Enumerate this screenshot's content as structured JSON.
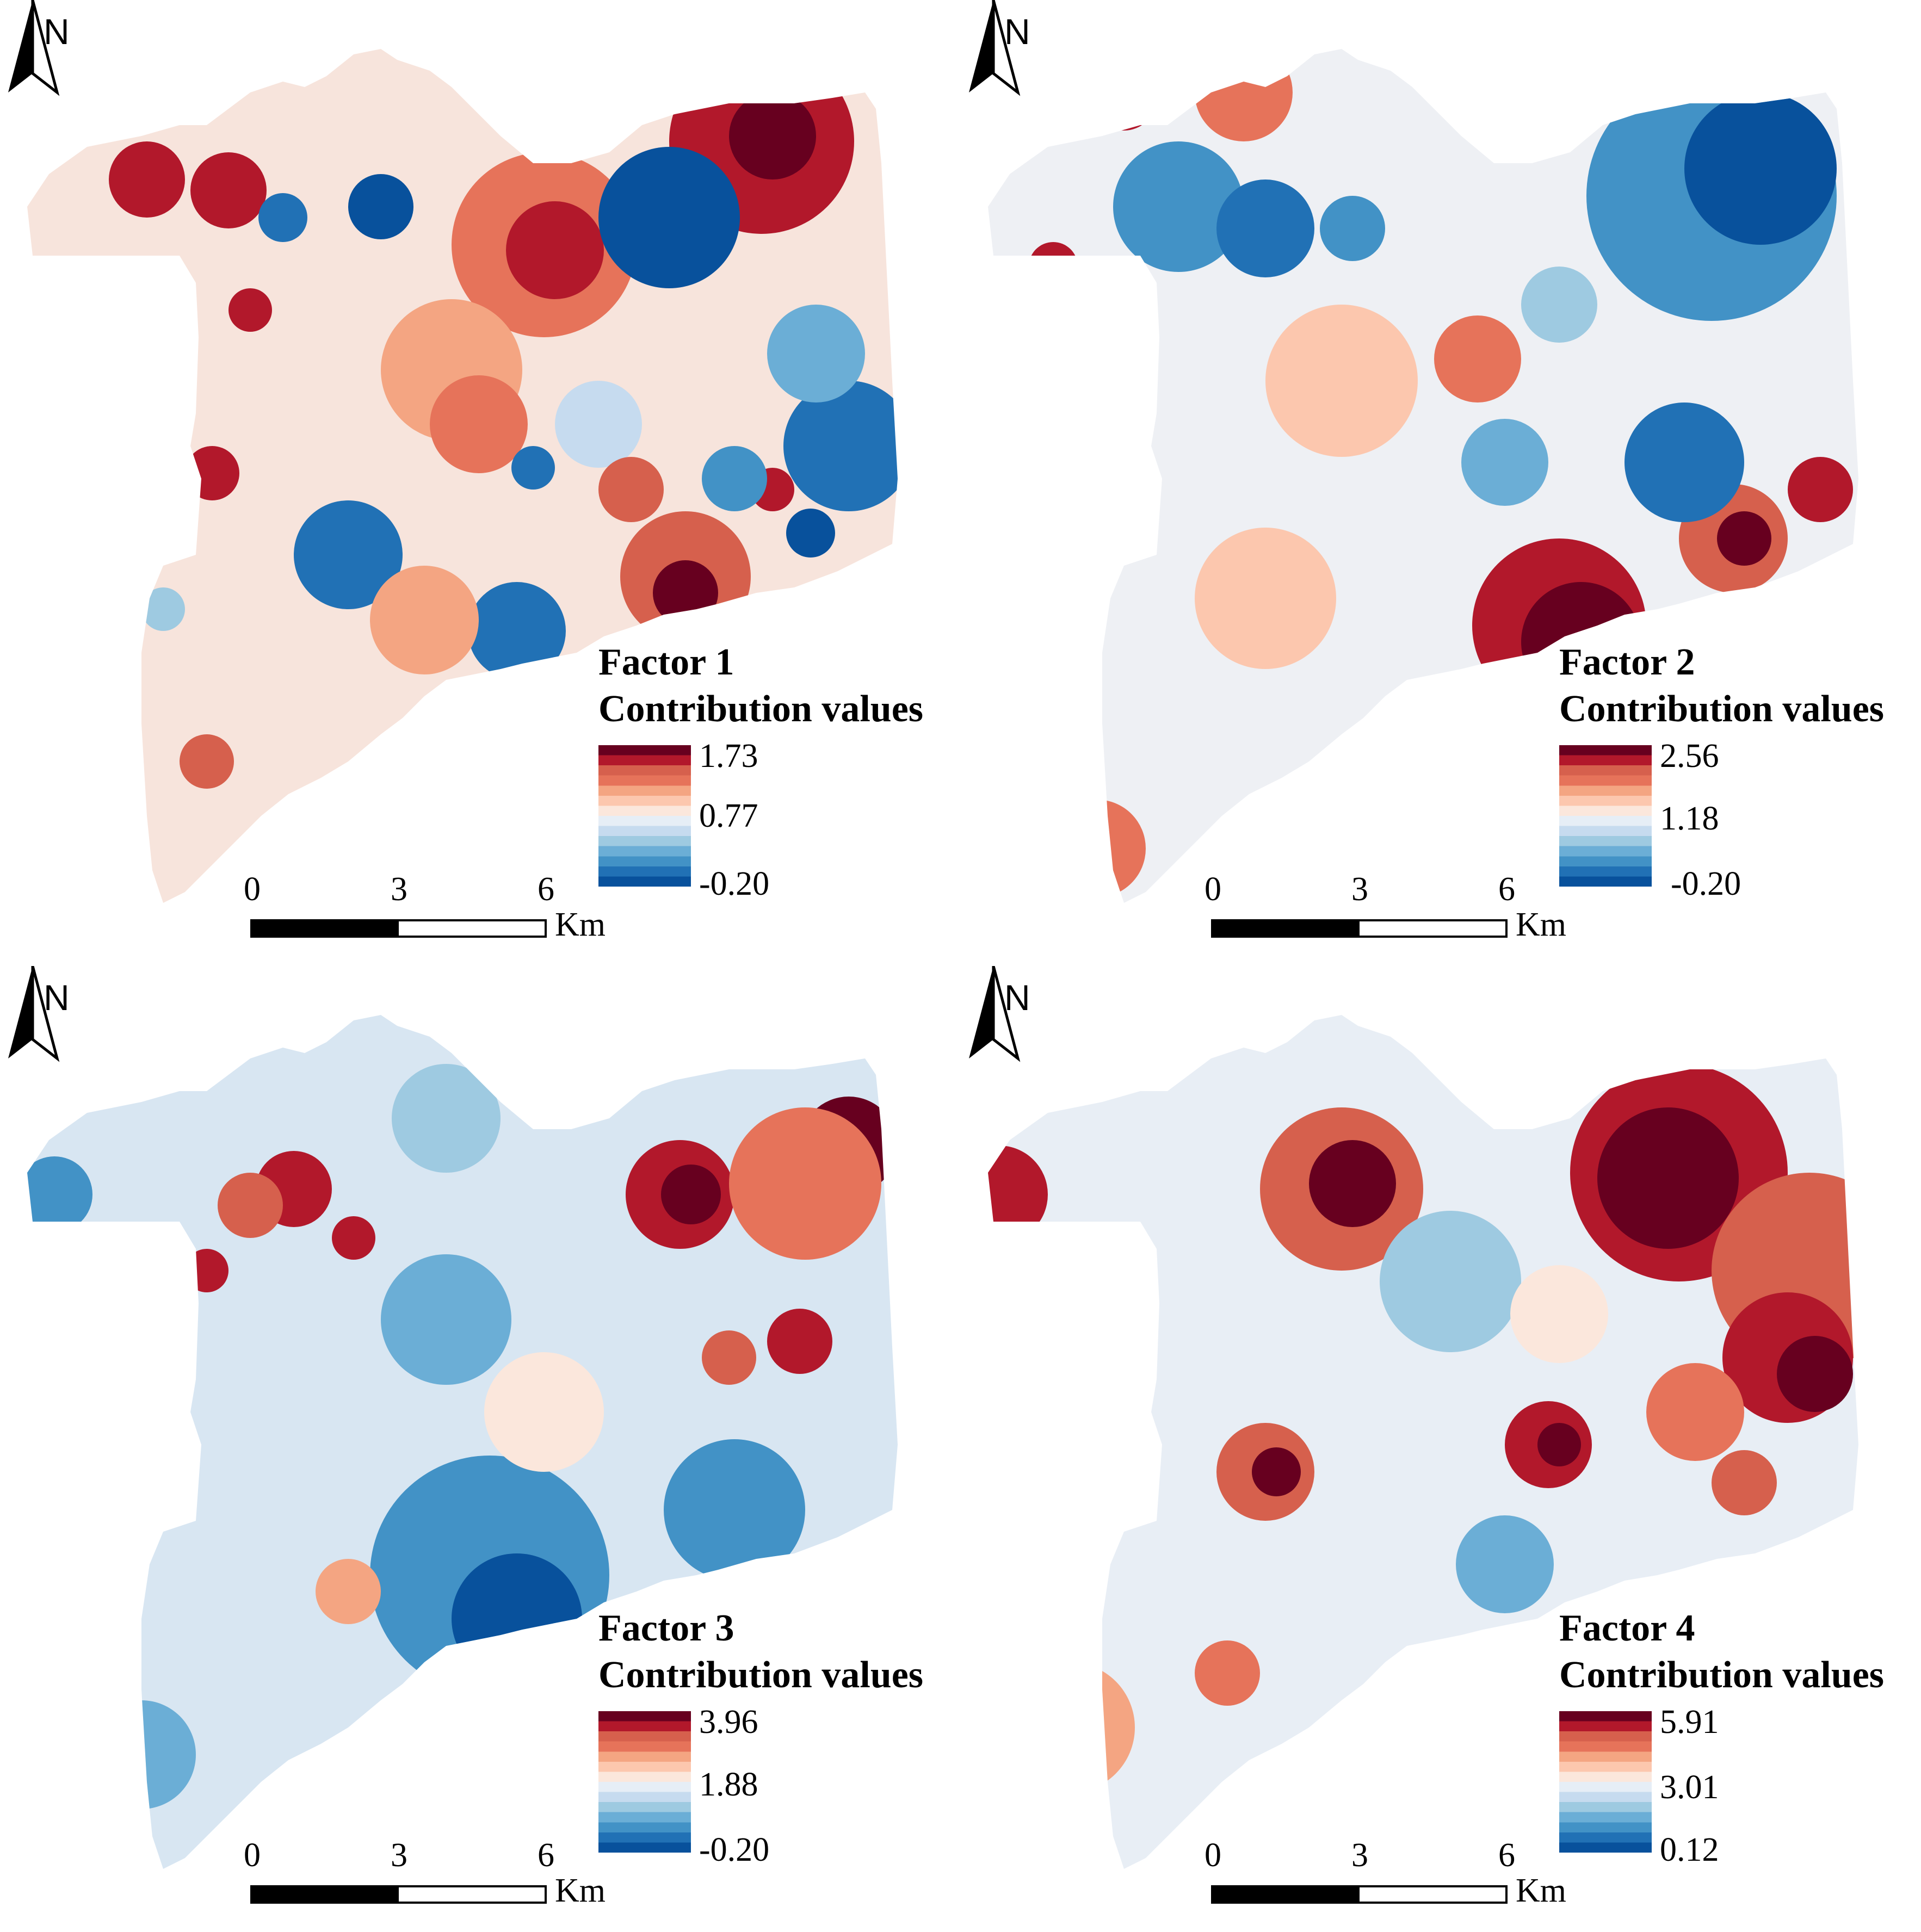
{
  "north_label": "N",
  "legend_heading": "Contribution values",
  "scale": {
    "ticks": [
      "0",
      "3",
      "6"
    ],
    "unit": "Km"
  },
  "colors": {
    "ramp": [
      "#08519c",
      "#2171b5",
      "#4292c6",
      "#6baed6",
      "#9ecae1",
      "#c6dbef",
      "#e6eef6",
      "#fbe7dc",
      "#fcc7ae",
      "#f4a582",
      "#e6735a",
      "#d6604d",
      "#b2182b",
      "#67001f"
    ]
  },
  "panels": [
    {
      "factor": "Factor 1",
      "max": "1.73",
      "mid": "0.77",
      "min": "-0.20"
    },
    {
      "factor": "Factor 2",
      "max": "2.56",
      "mid": "1.18",
      "min": "-0.20"
    },
    {
      "factor": "Factor 3",
      "max": "3.96",
      "mid": "1.88",
      "min": "-0.20"
    },
    {
      "factor": "Factor 4",
      "max": "5.91",
      "mid": "3.01",
      "min": "0.12"
    }
  ]
}
